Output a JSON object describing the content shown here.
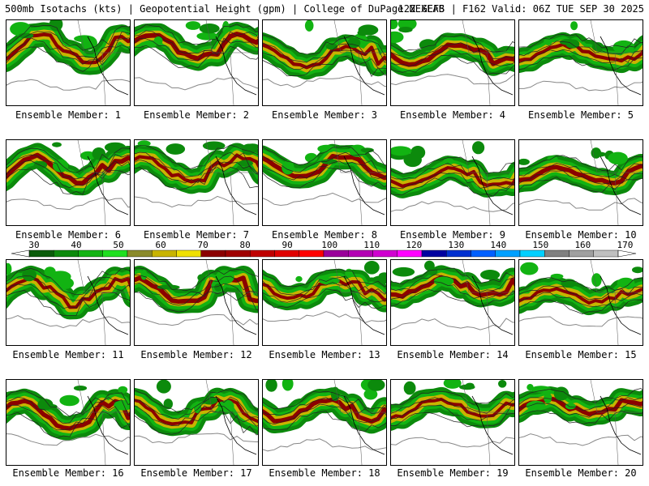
{
  "header": {
    "title": "500mb Isotachs (kts) | Geopotential Height (gpm) | College of DuPage NEXLAB",
    "run_info": "12Z GEFS | F162 Valid: 06Z TUE SEP 30 2025"
  },
  "members": [
    "Ensemble Member: 1",
    "Ensemble Member: 2",
    "Ensemble Member: 3",
    "Ensemble Member: 4",
    "Ensemble Member: 5",
    "Ensemble Member: 6",
    "Ensemble Member: 7",
    "Ensemble Member: 8",
    "Ensemble Member: 9",
    "Ensemble Member: 10",
    "Ensemble Member: 11",
    "Ensemble Member: 12",
    "Ensemble Member: 13",
    "Ensemble Member: 14",
    "Ensemble Member: 15",
    "Ensemble Member: 16",
    "Ensemble Member: 17",
    "Ensemble Member: 18",
    "Ensemble Member: 19",
    "Ensemble Member: 20"
  ],
  "colorbar": {
    "labels": [
      "30",
      "40",
      "50",
      "60",
      "70",
      "80",
      "90",
      "100",
      "110",
      "120",
      "130",
      "140",
      "150",
      "160",
      "170"
    ],
    "colors": [
      "#0a5c0a",
      "#0c8a0c",
      "#12b312",
      "#1fe01f",
      "#8a8a2a",
      "#c8b400",
      "#f0e000",
      "#8b0000",
      "#a00000",
      "#c00000",
      "#e00000",
      "#ff0000",
      "#9a009a",
      "#b400b4",
      "#d000d0",
      "#ff00ff",
      "#0000a0",
      "#0030d0",
      "#0060ff",
      "#00a0ff",
      "#00d0ff",
      "#808080",
      "#a0a0a0",
      "#c0c0c0"
    ]
  }
}
